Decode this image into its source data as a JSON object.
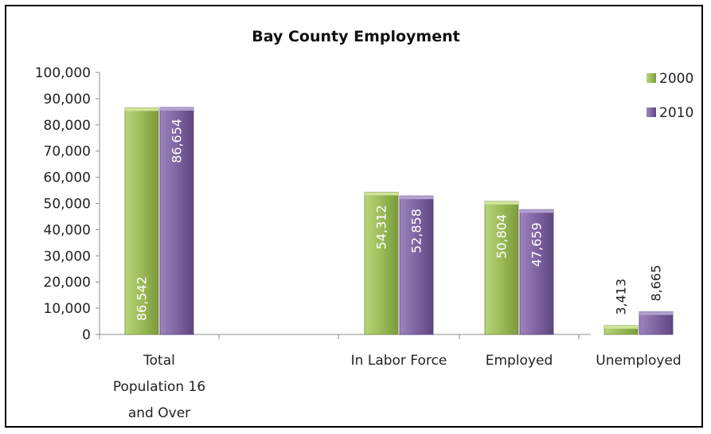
{
  "chart_data": {
    "type": "bar",
    "title": "Bay County Employment",
    "xlabel": "",
    "ylabel": "",
    "categories": [
      [
        "Total",
        "Population 16",
        "and Over"
      ],
      [
        "In Labor Force"
      ],
      [
        "Employed"
      ],
      [
        "Unemployed"
      ]
    ],
    "series": [
      {
        "name": "2000",
        "values": [
          86542,
          54312,
          50804,
          3413
        ],
        "labels": [
          "86,542",
          "54,312",
          "50,804",
          "3,413"
        ],
        "color": "#9bbb59"
      },
      {
        "name": "2010",
        "values": [
          86654,
          52858,
          47659,
          8665
        ],
        "labels": [
          "86,654",
          "52,858",
          "47,659",
          "8,665"
        ],
        "color": "#8064a2"
      }
    ],
    "ylim": [
      0,
      100000
    ],
    "yticks": [
      0,
      10000,
      20000,
      30000,
      40000,
      50000,
      60000,
      70000,
      80000,
      90000,
      100000
    ],
    "ytick_labels": [
      "0",
      "10,000",
      "20,000",
      "30,000",
      "40,000",
      "50,000",
      "60,000",
      "70,000",
      "80,000",
      "90,000",
      "100,000"
    ],
    "grid": false,
    "legend": "top-right"
  }
}
